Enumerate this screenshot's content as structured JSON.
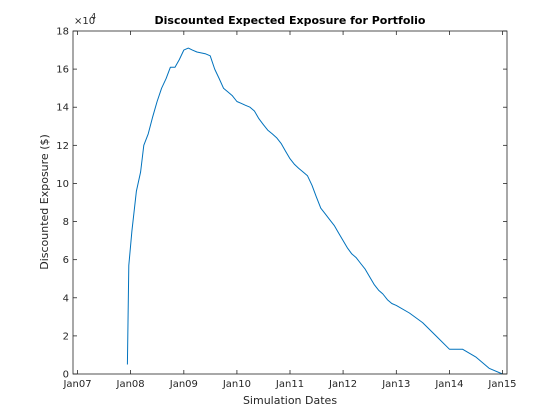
{
  "chart_data": {
    "type": "line",
    "title": "Discounted Expected Exposure for Portfolio",
    "xlabel": "Simulation Dates",
    "ylabel": "Discounted Exposure ($)",
    "y_exponent_label": "×10",
    "y_exponent_power": "4",
    "xlim": [
      "2006-12-01",
      "2015-02-01"
    ],
    "ylim": [
      0,
      18
    ],
    "x_ticks": [
      {
        "date": "2007-01-01",
        "label": "Jan07"
      },
      {
        "date": "2008-01-01",
        "label": "Jan08"
      },
      {
        "date": "2009-01-01",
        "label": "Jan09"
      },
      {
        "date": "2010-01-01",
        "label": "Jan10"
      },
      {
        "date": "2011-01-01",
        "label": "Jan11"
      },
      {
        "date": "2012-01-01",
        "label": "Jan12"
      },
      {
        "date": "2013-01-01",
        "label": "Jan13"
      },
      {
        "date": "2014-01-01",
        "label": "Jan14"
      },
      {
        "date": "2015-01-01",
        "label": "Jan15"
      }
    ],
    "y_ticks": [
      {
        "value": 0,
        "label": "0"
      },
      {
        "value": 2,
        "label": "2"
      },
      {
        "value": 4,
        "label": "4"
      },
      {
        "value": 6,
        "label": "6"
      },
      {
        "value": 8,
        "label": "8"
      },
      {
        "value": 10,
        "label": "10"
      },
      {
        "value": 12,
        "label": "12"
      },
      {
        "value": 14,
        "label": "14"
      },
      {
        "value": 16,
        "label": "16"
      },
      {
        "value": 18,
        "label": "18"
      }
    ],
    "grid": false,
    "series": [
      {
        "color": "#0072bd",
        "x": [
          "2007-12-10",
          "2007-12-20",
          "2008-01-10",
          "2008-02-10",
          "2008-03-10",
          "2008-04-01",
          "2008-05-01",
          "2008-06-01",
          "2008-07-01",
          "2008-08-01",
          "2008-09-01",
          "2008-10-01",
          "2008-11-01",
          "2008-12-01",
          "2009-01-01",
          "2009-02-01",
          "2009-03-01",
          "2009-04-01",
          "2009-06-01",
          "2009-07-01",
          "2009-08-01",
          "2009-09-01",
          "2009-10-01",
          "2009-11-01",
          "2009-12-01",
          "2010-01-01",
          "2010-02-01",
          "2010-03-01",
          "2010-04-01",
          "2010-05-01",
          "2010-06-01",
          "2010-07-01",
          "2010-08-01",
          "2010-09-01",
          "2010-10-01",
          "2010-11-01",
          "2010-12-01",
          "2011-01-01",
          "2011-02-01",
          "2011-03-01",
          "2011-04-01",
          "2011-05-01",
          "2011-06-01",
          "2011-07-01",
          "2011-08-01",
          "2011-09-01",
          "2011-10-01",
          "2011-11-01",
          "2011-12-01",
          "2012-01-01",
          "2012-02-01",
          "2012-03-01",
          "2012-04-01",
          "2012-05-01",
          "2012-06-01",
          "2012-07-01",
          "2012-08-01",
          "2012-09-01",
          "2012-10-01",
          "2012-11-01",
          "2012-12-01",
          "2013-01-01",
          "2013-04-01",
          "2013-07-01",
          "2013-10-01",
          "2014-01-01",
          "2014-04-01",
          "2014-07-01",
          "2014-10-01",
          "2015-01-01"
        ],
        "values": [
          0.5,
          5.7,
          7.5,
          9.6,
          10.6,
          12.0,
          12.6,
          13.5,
          14.3,
          15.0,
          15.5,
          16.1,
          16.1,
          16.5,
          17.0,
          17.1,
          17.0,
          16.9,
          16.8,
          16.7,
          16.0,
          15.5,
          15.0,
          14.8,
          14.6,
          14.3,
          14.2,
          14.1,
          14.0,
          13.8,
          13.4,
          13.1,
          12.8,
          12.6,
          12.4,
          12.1,
          11.7,
          11.3,
          11.0,
          10.8,
          10.6,
          10.4,
          9.9,
          9.3,
          8.7,
          8.4,
          8.1,
          7.8,
          7.4,
          7.0,
          6.6,
          6.3,
          6.1,
          5.8,
          5.5,
          5.1,
          4.7,
          4.4,
          4.2,
          3.9,
          3.7,
          3.6,
          3.2,
          2.7,
          2.0,
          1.3,
          1.3,
          0.9,
          0.3,
          0.0
        ]
      }
    ]
  }
}
